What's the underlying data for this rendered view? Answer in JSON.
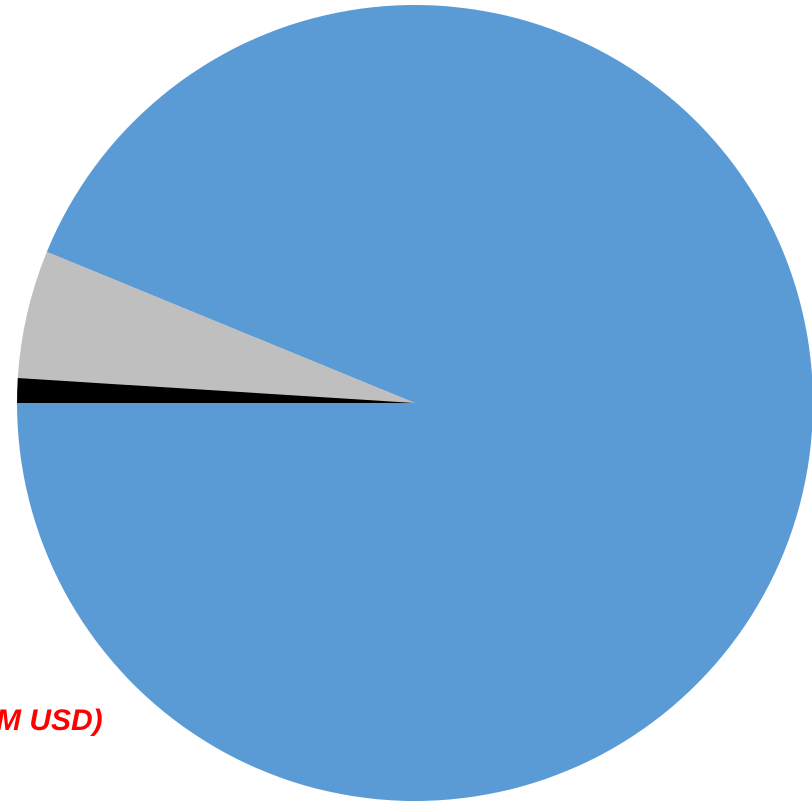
{
  "chart_data": {
    "type": "pie",
    "title": "",
    "slices": [
      {
        "label": "",
        "value": 93.8,
        "color": "#5b9bd5"
      },
      {
        "label": "",
        "value": 5.2,
        "color": "#bfbfbf"
      },
      {
        "label": "",
        "value": 1.0,
        "color": "#000000"
      }
    ],
    "start_angle_deg": 180,
    "direction": "counterclockwise-on-screen",
    "annotations": [
      {
        "text": "M USD)",
        "color": "#ff0000"
      }
    ]
  }
}
